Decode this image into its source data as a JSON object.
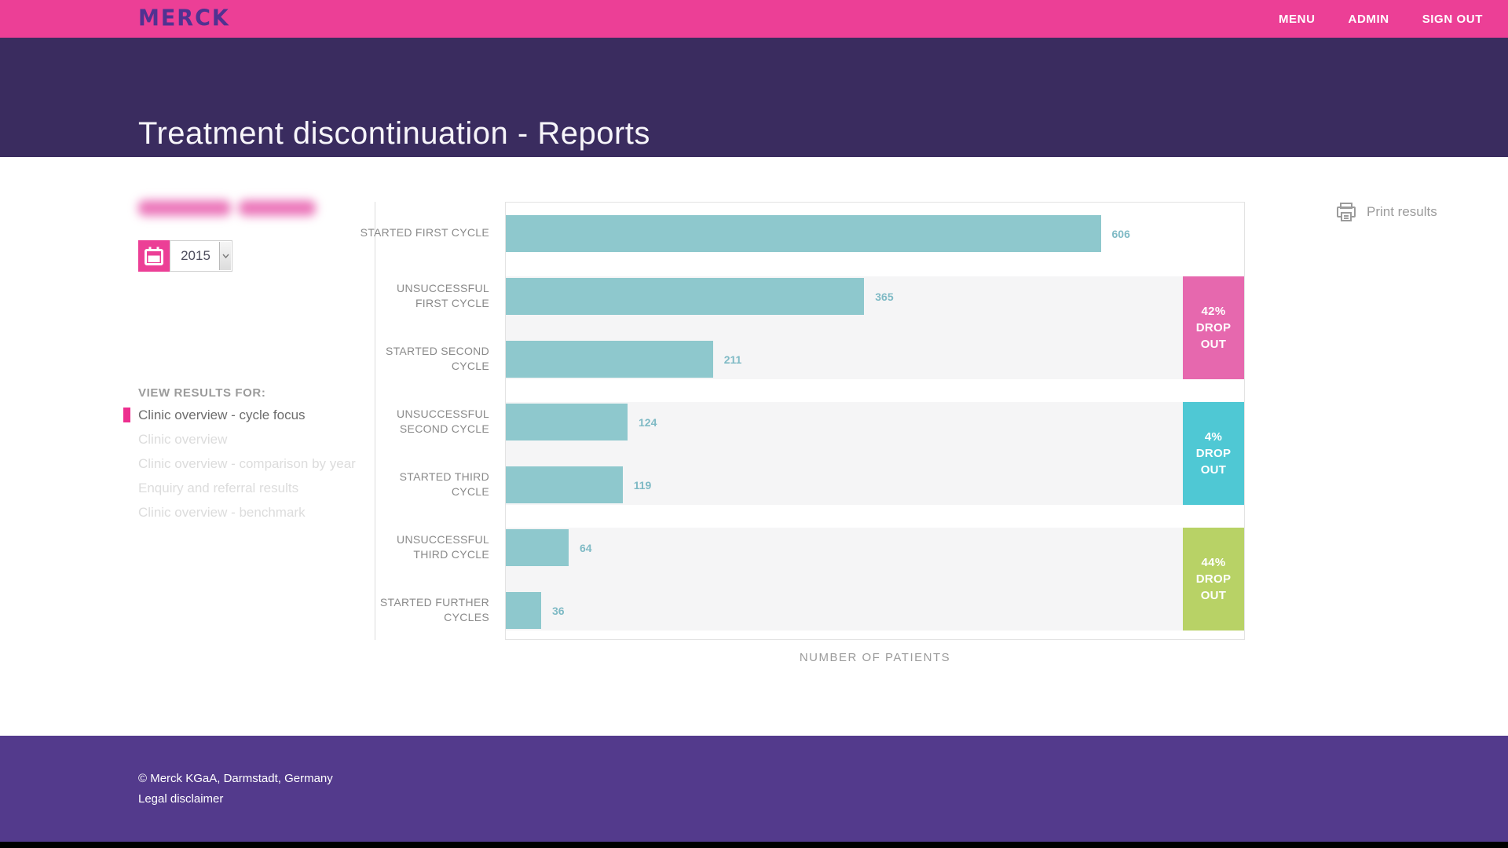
{
  "topbar": {
    "logo": "MERCK",
    "logo_color": "#503291",
    "background": "#ec3f96",
    "nav": [
      {
        "label": "MENU"
      },
      {
        "label": "ADMIN"
      },
      {
        "label": "SIGN OUT"
      }
    ]
  },
  "hero": {
    "title": "Treatment discontinuation - Reports",
    "background": "#3a2c5f"
  },
  "sidebar": {
    "clinic_name_redacted": true,
    "year_value": "2015",
    "section_label": "VIEW RESULTS FOR:",
    "accent_color": "#ed2f8f",
    "items": [
      {
        "label": "Clinic overview - cycle focus",
        "active": true
      },
      {
        "label": "Clinic overview",
        "active": false
      },
      {
        "label": "Clinic overview - comparison by year",
        "active": false
      },
      {
        "label": "Enquiry and referral results",
        "active": false
      },
      {
        "label": "Clinic overview - benchmark",
        "active": false
      }
    ]
  },
  "toolbar": {
    "print_label": "Print results"
  },
  "chart_data": {
    "type": "bar",
    "orientation": "horizontal",
    "title": "",
    "categories": [
      [
        "STARTED FIRST CYCLE"
      ],
      [
        "UNSUCCESSFUL",
        "FIRST CYCLE"
      ],
      [
        "STARTED SECOND",
        "CYCLE"
      ],
      [
        "UNSUCCESSFUL",
        "SECOND CYCLE"
      ],
      [
        "STARTED THIRD",
        "CYCLE"
      ],
      [
        "UNSUCCESSFUL",
        "THIRD CYCLE"
      ],
      [
        "STARTED FURTHER",
        "CYCLES"
      ]
    ],
    "values": [
      606,
      365,
      211,
      124,
      119,
      64,
      36
    ],
    "xlabel": "NUMBER OF PATIENTS",
    "xlim": [
      0,
      752
    ],
    "grid": false,
    "legend": false,
    "bar_color": "#8ec8cd",
    "value_label_color": "#7fbac5",
    "band_color": "#f5f5f6",
    "groups": [
      {
        "start_row": 1,
        "badge_lines": [
          "42%",
          "DROP",
          "OUT"
        ],
        "color": "#e668ae"
      },
      {
        "start_row": 3,
        "badge_lines": [
          "4%",
          "DROP",
          "OUT"
        ],
        "color": "#4fc8d4"
      },
      {
        "start_row": 5,
        "badge_lines": [
          "44%",
          "DROP",
          "OUT"
        ],
        "color": "#b8d266"
      }
    ]
  },
  "footer": {
    "background": "#533a8c",
    "copyright": "© Merck KGaA, Darmstadt, Germany",
    "legal": "Legal disclaimer"
  }
}
